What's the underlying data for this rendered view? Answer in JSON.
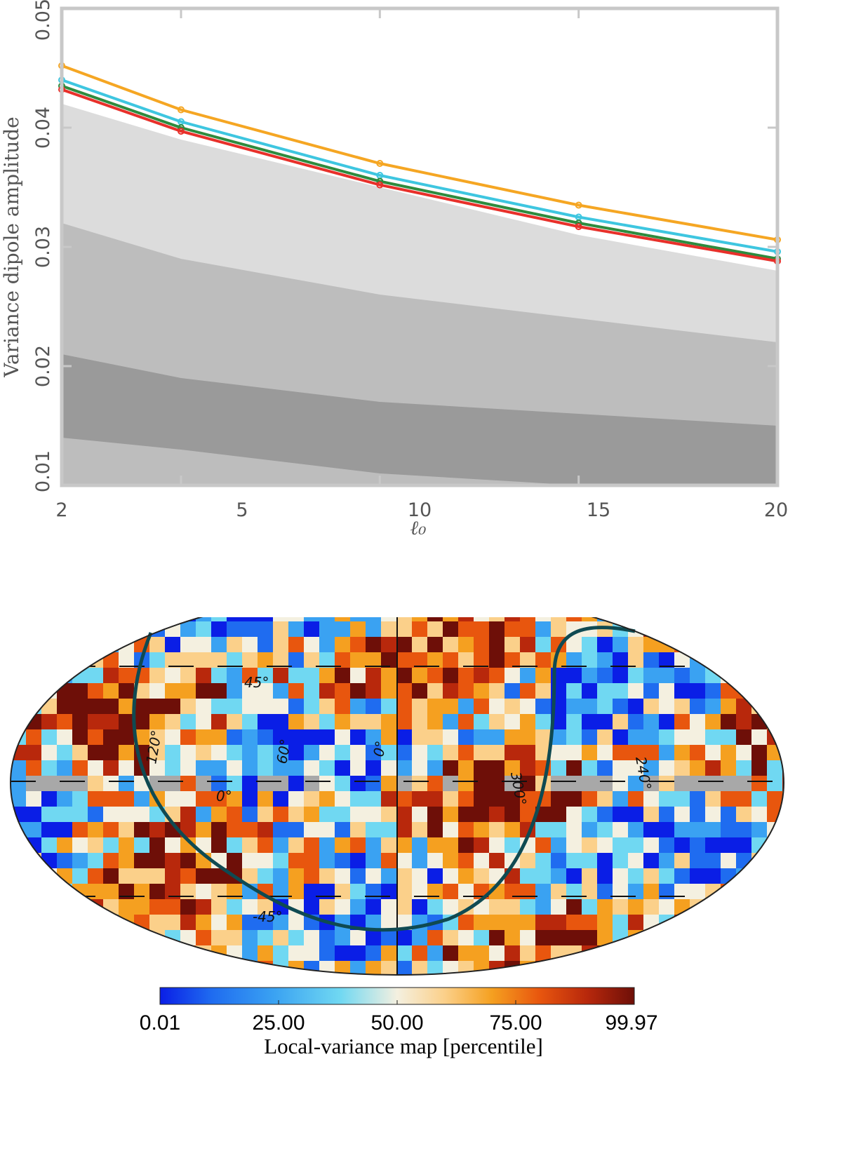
{
  "chart_data": [
    {
      "type": "line",
      "title": "",
      "xlabel": "ℓ₀",
      "ylabel": "Variance dipole amplitude",
      "xlim": [
        2,
        20
      ],
      "ylim": [
        0.01,
        0.05
      ],
      "x": [
        2,
        5,
        10,
        15,
        20
      ],
      "x_tick_labels": [
        "2",
        "5",
        "10",
        "15",
        "20"
      ],
      "y_ticks": [
        0.01,
        0.02,
        0.03,
        0.04,
        0.05
      ],
      "y_tick_labels": [
        "0.01",
        "0.02",
        "0.03",
        "0.04",
        "0.05"
      ],
      "bands": [
        {
          "name": "outer",
          "lower": [
            0.01,
            0.01,
            0.01,
            0.01,
            0.01
          ],
          "upper": [
            0.042,
            0.039,
            0.035,
            0.031,
            0.028
          ],
          "color": "#dcdcdc"
        },
        {
          "name": "middle",
          "lower": [
            0.01,
            0.01,
            0.01,
            0.01,
            0.01
          ],
          "upper": [
            0.032,
            0.029,
            0.026,
            0.024,
            0.022
          ],
          "color": "#bdbdbd"
        },
        {
          "name": "inner",
          "lower": [
            0.014,
            0.013,
            0.011,
            0.01,
            0.01
          ],
          "upper": [
            0.021,
            0.019,
            0.017,
            0.016,
            0.015
          ],
          "color": "#9a9a9a"
        }
      ],
      "series": [
        {
          "name": "orange",
          "values": [
            0.0452,
            0.0415,
            0.037,
            0.0335,
            0.0306
          ],
          "color": "#f5a623"
        },
        {
          "name": "cyan",
          "values": [
            0.044,
            0.0405,
            0.036,
            0.0325,
            0.0296
          ],
          "color": "#3ec6e0"
        },
        {
          "name": "green",
          "values": [
            0.0435,
            0.04,
            0.0355,
            0.032,
            0.029
          ],
          "color": "#2e8b3e"
        },
        {
          "name": "red",
          "values": [
            0.0432,
            0.0397,
            0.0352,
            0.0317,
            0.0288
          ],
          "color": "#e8302a"
        }
      ]
    },
    {
      "type": "heatmap",
      "projection": "mollweide",
      "title": "Local-variance map [percentile]",
      "colorbar_ticks": [
        0.01,
        25.0,
        50.0,
        75.0,
        99.97
      ],
      "colorbar_tick_labels": [
        "0.01",
        "25.00",
        "50.00",
        "75.00",
        "99.97"
      ],
      "colorbar_range": [
        0.01,
        99.97
      ],
      "grid_annotations": [
        "45°",
        "120°",
        "60°",
        "0°",
        "300°",
        "240°",
        "0°",
        "-45°"
      ],
      "masked_color": "#a8a8a8",
      "curve_color": "#0f4a52"
    }
  ],
  "colors": {
    "cmap": [
      "#0a1ee6",
      "#1f6cf0",
      "#3aa2f2",
      "#70d8f2",
      "#f4f0e0",
      "#fbd08a",
      "#f5a020",
      "#e8560e",
      "#b8280c",
      "#6e0f08"
    ]
  }
}
